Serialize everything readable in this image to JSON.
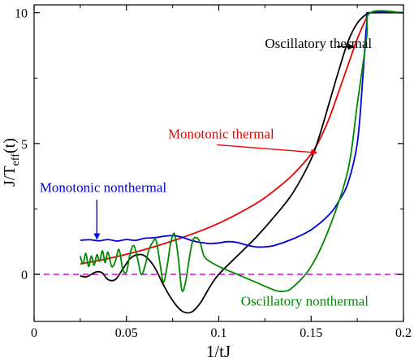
{
  "chart_data": {
    "type": "line",
    "xlabel": "1/tJ",
    "ylabel": "J/T",
    "ylabel_sub": "eff",
    "ylabel_tail": "(t)",
    "xlim": [
      0,
      0.2
    ],
    "ylim": [
      -1.8,
      10.3
    ],
    "xticks": [
      0,
      0.05,
      0.1,
      0.15,
      0.2
    ],
    "xtick_labels": [
      "0",
      "0.05",
      "0.1",
      "0.15",
      "0.2"
    ],
    "yticks": [
      0,
      5,
      10
    ],
    "ytick_labels": [
      "0",
      "5",
      "10"
    ],
    "reference_line": {
      "y": 0,
      "color": "#dd00dd",
      "style": "dashed"
    },
    "colors": {
      "oscillatory_thermal": "#000000",
      "monotonic_thermal": "#ee0000",
      "monotonic_nonthermal": "#0000dd",
      "oscillatory_nonthermal": "#008800"
    },
    "series": [
      {
        "key": "monotonic_thermal",
        "name": "Monotonic thermal",
        "color": "#ee0000",
        "x": [
          0.025,
          0.04,
          0.06,
          0.08,
          0.1,
          0.12,
          0.13,
          0.14,
          0.15,
          0.155,
          0.16,
          0.165,
          0.17,
          0.175,
          0.18,
          0.182,
          0.2
        ],
        "y": [
          0.4,
          0.6,
          0.95,
          1.4,
          1.95,
          2.7,
          3.2,
          3.8,
          4.6,
          5.2,
          6.0,
          7.0,
          8.0,
          9.0,
          9.8,
          10,
          10
        ]
      },
      {
        "key": "oscillatory_thermal",
        "name": "Oscillatory thermal",
        "color": "#000000",
        "x": [
          0.025,
          0.028,
          0.031,
          0.034,
          0.037,
          0.04,
          0.044,
          0.048,
          0.052,
          0.056,
          0.06,
          0.065,
          0.07,
          0.075,
          0.08,
          0.085,
          0.09,
          0.095,
          0.1,
          0.11,
          0.12,
          0.13,
          0.14,
          0.15,
          0.155,
          0.16,
          0.165,
          0.17,
          0.175,
          0.18,
          0.182,
          0.2
        ],
        "y": [
          -0.05,
          -0.1,
          0.0,
          0.1,
          0.05,
          -0.2,
          -0.2,
          0.2,
          0.6,
          0.75,
          0.7,
          0.3,
          -0.4,
          -1.0,
          -1.4,
          -1.45,
          -1.1,
          -0.5,
          0.0,
          0.7,
          1.4,
          2.2,
          3.1,
          4.4,
          5.4,
          6.6,
          7.8,
          8.9,
          9.6,
          9.95,
          10,
          10
        ]
      },
      {
        "key": "monotonic_nonthermal",
        "name": "Monotonic nonthermal",
        "color": "#0000dd",
        "x": [
          0.025,
          0.03,
          0.035,
          0.04,
          0.045,
          0.05,
          0.055,
          0.06,
          0.065,
          0.07,
          0.075,
          0.08,
          0.085,
          0.09,
          0.095,
          0.1,
          0.105,
          0.11,
          0.115,
          0.12,
          0.125,
          0.13,
          0.14,
          0.15,
          0.16,
          0.165,
          0.17,
          0.175,
          0.178,
          0.18,
          0.182,
          0.2
        ],
        "y": [
          1.3,
          1.32,
          1.28,
          1.33,
          1.27,
          1.33,
          1.3,
          1.38,
          1.4,
          1.45,
          1.48,
          1.42,
          1.3,
          1.22,
          1.18,
          1.2,
          1.25,
          1.22,
          1.12,
          1.05,
          1.05,
          1.1,
          1.35,
          1.7,
          2.3,
          2.8,
          3.5,
          5.0,
          7.5,
          9.5,
          10,
          10
        ]
      },
      {
        "key": "oscillatory_nonthermal",
        "name": "Oscillatory nonthermal",
        "color": "#008800",
        "x": [
          0.025,
          0.0265,
          0.028,
          0.0295,
          0.031,
          0.0325,
          0.034,
          0.0355,
          0.037,
          0.0385,
          0.04,
          0.042,
          0.044,
          0.046,
          0.048,
          0.05,
          0.052,
          0.054,
          0.056,
          0.058,
          0.06,
          0.062,
          0.064,
          0.066,
          0.068,
          0.07,
          0.072,
          0.074,
          0.076,
          0.078,
          0.08,
          0.082,
          0.084,
          0.086,
          0.088,
          0.09,
          0.092,
          0.095,
          0.1,
          0.11,
          0.12,
          0.13,
          0.135,
          0.14,
          0.15,
          0.16,
          0.17,
          0.175,
          0.18,
          0.182,
          0.2
        ],
        "y": [
          0.7,
          0.4,
          0.8,
          0.3,
          0.7,
          0.35,
          0.75,
          0.5,
          0.9,
          0.45,
          0.85,
          0.3,
          0.5,
          0.95,
          0.2,
          0.1,
          0.8,
          1.1,
          0.6,
          0.0,
          0.3,
          0.9,
          1.2,
          1.3,
          0.5,
          -0.3,
          0.3,
          1.2,
          1.55,
          0.7,
          -0.6,
          -0.3,
          0.6,
          1.3,
          1.4,
          1.2,
          0.7,
          0.5,
          0.3,
          0.0,
          -0.3,
          -0.6,
          -0.65,
          -0.5,
          0.3,
          1.8,
          4.0,
          6.5,
          9.0,
          10,
          10
        ]
      }
    ],
    "annotations": [
      {
        "key": "oscillatory_thermal",
        "text": "Oscillatory thermal",
        "color": "#000000",
        "text_x": 0.125,
        "text_y": 8.65,
        "arrow_from": [
          0.164,
          8.7
        ],
        "arrow_to": [
          0.173,
          8.7
        ]
      },
      {
        "key": "monotonic_thermal",
        "text": "Monotonic thermal",
        "color": "#ee0000",
        "text_x": 0.0725,
        "text_y": 5.2,
        "arrow_from": [
          0.099,
          4.95
        ],
        "arrow_to": [
          0.153,
          4.65
        ]
      },
      {
        "key": "monotonic_nonthermal",
        "text": "Monotonic nonthermal",
        "color": "#0000dd",
        "text_x": 0.003,
        "text_y": 3.15,
        "arrow_from": [
          0.034,
          2.85
        ],
        "arrow_to": [
          0.034,
          1.35
        ]
      },
      {
        "key": "oscillatory_nonthermal",
        "text": "Oscillatory nonthermal",
        "color": "#008800",
        "text_x": 0.112,
        "text_y": -1.2,
        "arrow_from": null,
        "arrow_to": null
      }
    ]
  }
}
